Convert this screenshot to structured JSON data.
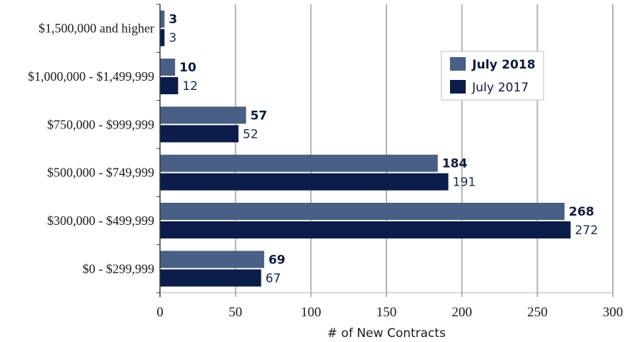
{
  "chart_data": {
    "type": "bar",
    "orientation": "horizontal",
    "categories": [
      "$1,500,000 and higher",
      "$1,000,000 - $1,499,999",
      "$750,000 - $999,999",
      "$500,000 - $749,999",
      "$300,000 - $499,999",
      "$0 - $299,999"
    ],
    "series": [
      {
        "name": "July 2018",
        "color": "#4a5f85",
        "values": [
          3,
          10,
          57,
          184,
          268,
          69
        ]
      },
      {
        "name": "July 2017",
        "color": "#0b1d4a",
        "values": [
          3,
          12,
          52,
          191,
          272,
          67
        ]
      }
    ],
    "xlabel": "# of New Contracts",
    "xlim": [
      0,
      300
    ],
    "xticks": [
      "0",
      "50",
      "100",
      "150",
      "200",
      "250",
      "300"
    ],
    "grid": "vertical",
    "legend": "top-right"
  }
}
